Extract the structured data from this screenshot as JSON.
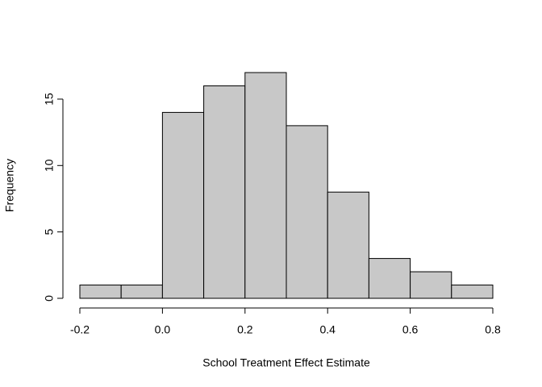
{
  "chart_data": {
    "type": "histogram",
    "xlabel": "School Treatment Effect Estimate",
    "ylabel": "Frequency",
    "bins": [
      -0.2,
      -0.1,
      0.0,
      0.1,
      0.2,
      0.3,
      0.4,
      0.5,
      0.6,
      0.7,
      0.8
    ],
    "values": [
      1,
      1,
      14,
      16,
      17,
      13,
      8,
      3,
      2,
      1
    ],
    "color": "#c8c8c8",
    "xlim": [
      -0.2,
      0.8
    ],
    "xticks": [
      -0.2,
      {
        "value": 0,
        "label": "0.0"
      },
      0.2,
      0.4,
      0.6,
      0.8
    ],
    "ylim": [
      0,
      17
    ],
    "yticks": [
      0,
      5,
      10,
      15
    ]
  }
}
